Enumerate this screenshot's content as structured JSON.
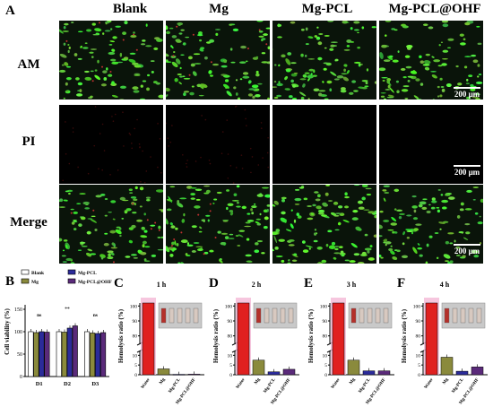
{
  "panelA": {
    "letter": "A",
    "columns": [
      "Blank",
      "Mg",
      "Mg-PCL",
      "Mg-PCL@OHF"
    ],
    "rows": [
      "AM",
      "PI",
      "Merge"
    ],
    "scalebar": "200 μm"
  },
  "panelB": {
    "letter": "B",
    "legend": [
      "Blank",
      "Mg",
      "Mg-PCL",
      "Mg-PCL@OHF"
    ],
    "ylabel": "Cell viability (%)",
    "yticks": [
      "0",
      "50",
      "100",
      "150"
    ],
    "sig": [
      "ns",
      "**",
      "ns"
    ],
    "colors": {
      "Blank": "#ffffff",
      "Mg": "#8a8a3c",
      "Mg-PCL": "#2b2b9a",
      "Mg-PCL@OHF": "#5a2a7a"
    }
  },
  "hemolysis": [
    {
      "letter": "C",
      "title": "1 h"
    },
    {
      "letter": "D",
      "title": "2 h"
    },
    {
      "letter": "E",
      "title": "3 h"
    },
    {
      "letter": "F",
      "title": "4 h"
    }
  ],
  "hemo_common": {
    "ylabel": "Hemolysis ratio (%)",
    "yticks_top": [
      "80",
      "90",
      "100"
    ],
    "yticks_bottom": [
      "0",
      "5",
      "10"
    ],
    "xcats": [
      "Water",
      "Mg",
      "Mg-PCL",
      "Mg-PCL@OHF"
    ]
  },
  "chart_data": [
    {
      "type": "bar",
      "title": "",
      "ylabel": "Cell viability (%)",
      "categories": [
        "D1",
        "D2",
        "D3"
      ],
      "ylim": [
        0,
        150
      ],
      "series": [
        {
          "name": "Blank",
          "values": [
            100,
            100,
            100
          ]
        },
        {
          "name": "Mg",
          "values": [
            98,
            99,
            97
          ]
        },
        {
          "name": "Mg-PCL",
          "values": [
            100,
            108,
            96
          ]
        },
        {
          "name": "Mg-PCL@OHF",
          "values": [
            99,
            113,
            98
          ]
        }
      ]
    },
    {
      "type": "bar",
      "title": "1 h",
      "ylabel": "Hemolysis ratio (%)",
      "categories": [
        "Water",
        "Mg",
        "Mg-PCL",
        "Mg-PCL@OHF"
      ],
      "values": [
        100,
        3.0,
        0.2,
        0.3
      ]
    },
    {
      "type": "bar",
      "title": "2 h",
      "ylabel": "Hemolysis ratio (%)",
      "categories": [
        "Water",
        "Mg",
        "Mg-PCL",
        "Mg-PCL@OHF"
      ],
      "values": [
        100,
        7.5,
        1.5,
        2.8
      ]
    },
    {
      "type": "bar",
      "title": "3 h",
      "ylabel": "Hemolysis ratio (%)",
      "categories": [
        "Water",
        "Mg",
        "Mg-PCL",
        "Mg-PCL@OHF"
      ],
      "values": [
        100,
        7.5,
        2.0,
        2.0
      ]
    },
    {
      "type": "bar",
      "title": "4 h",
      "ylabel": "Hemolysis ratio (%)",
      "categories": [
        "Water",
        "Mg",
        "Mg-PCL",
        "Mg-PCL@OHF"
      ],
      "values": [
        100,
        9.0,
        1.8,
        4.0
      ]
    }
  ]
}
